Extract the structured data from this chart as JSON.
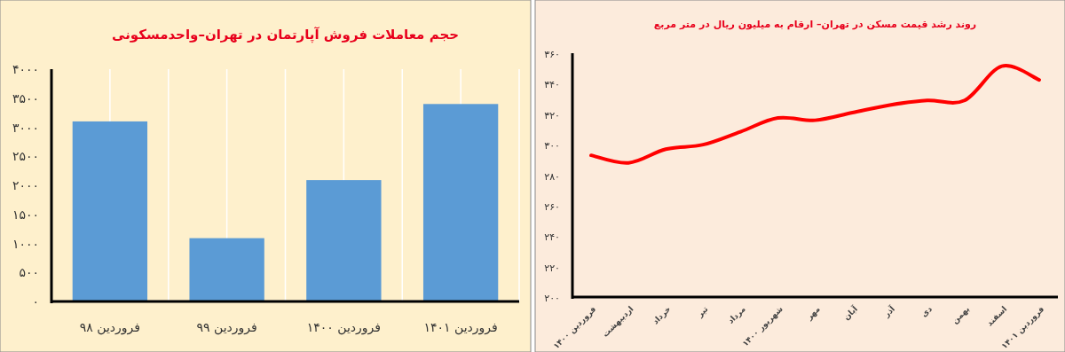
{
  "chart_data": [
    {
      "type": "bar",
      "title": "حجم معاملات فروش آپارتمان در تهران–واحدمسکونی",
      "categories": [
        "فروردین ۹۸",
        "فروردین ۹۹",
        "فروردین ۱۴۰۰",
        "فروردین ۱۴۰۱"
      ],
      "values": [
        3100,
        1090,
        2090,
        3400
      ],
      "color": "#5b9bd5",
      "ylim": [
        0,
        4000
      ],
      "yticks": [
        {
          "value": 0,
          "label": "۰"
        },
        {
          "value": 500,
          "label": "۵۰۰"
        },
        {
          "value": 1000,
          "label": "۱۰۰۰"
        },
        {
          "value": 1500,
          "label": "۱۵۰۰"
        },
        {
          "value": 2000,
          "label": "۲۰۰۰"
        },
        {
          "value": 2500,
          "label": "۲۵۰۰"
        },
        {
          "value": 3000,
          "label": "۳۰۰۰"
        },
        {
          "value": 3500,
          "label": "۳۵۰۰"
        },
        {
          "value": 4000,
          "label": "۴۰۰۰"
        }
      ],
      "grid": "x"
    },
    {
      "type": "line",
      "title": "روند رشد قیمت مسکن در تهران– ارقام به میلیون ریال در متر مربع",
      "categories": [
        "فروردین ۱۴۰۰",
        "اردیبهشت",
        "خرداد",
        "تیر",
        "مرداد",
        "شهریور ۱۴۰۰",
        "مهر",
        "آبان",
        "آذر",
        "دی",
        "بهمن",
        "اسفند",
        "فروردین ۱۴۰۱"
      ],
      "values": [
        293,
        288,
        297,
        300,
        308.5,
        317.5,
        316,
        321,
        326,
        329,
        329,
        351.5,
        342.5
      ],
      "color": "#ff0000",
      "ylim": [
        200,
        360
      ],
      "yticks": [
        {
          "value": 200,
          "label": "۲۰۰"
        },
        {
          "value": 220,
          "label": "۲۲۰"
        },
        {
          "value": 240,
          "label": "۲۴۰"
        },
        {
          "value": 260,
          "label": "۲۶۰"
        },
        {
          "value": 280,
          "label": "۲۸۰"
        },
        {
          "value": 300,
          "label": "۳۰۰"
        },
        {
          "value": 320,
          "label": "۳۲۰"
        },
        {
          "value": 340,
          "label": "۳۴۰"
        },
        {
          "value": 360,
          "label": "۳۶۰"
        }
      ],
      "grid": false,
      "marker": "none"
    }
  ]
}
